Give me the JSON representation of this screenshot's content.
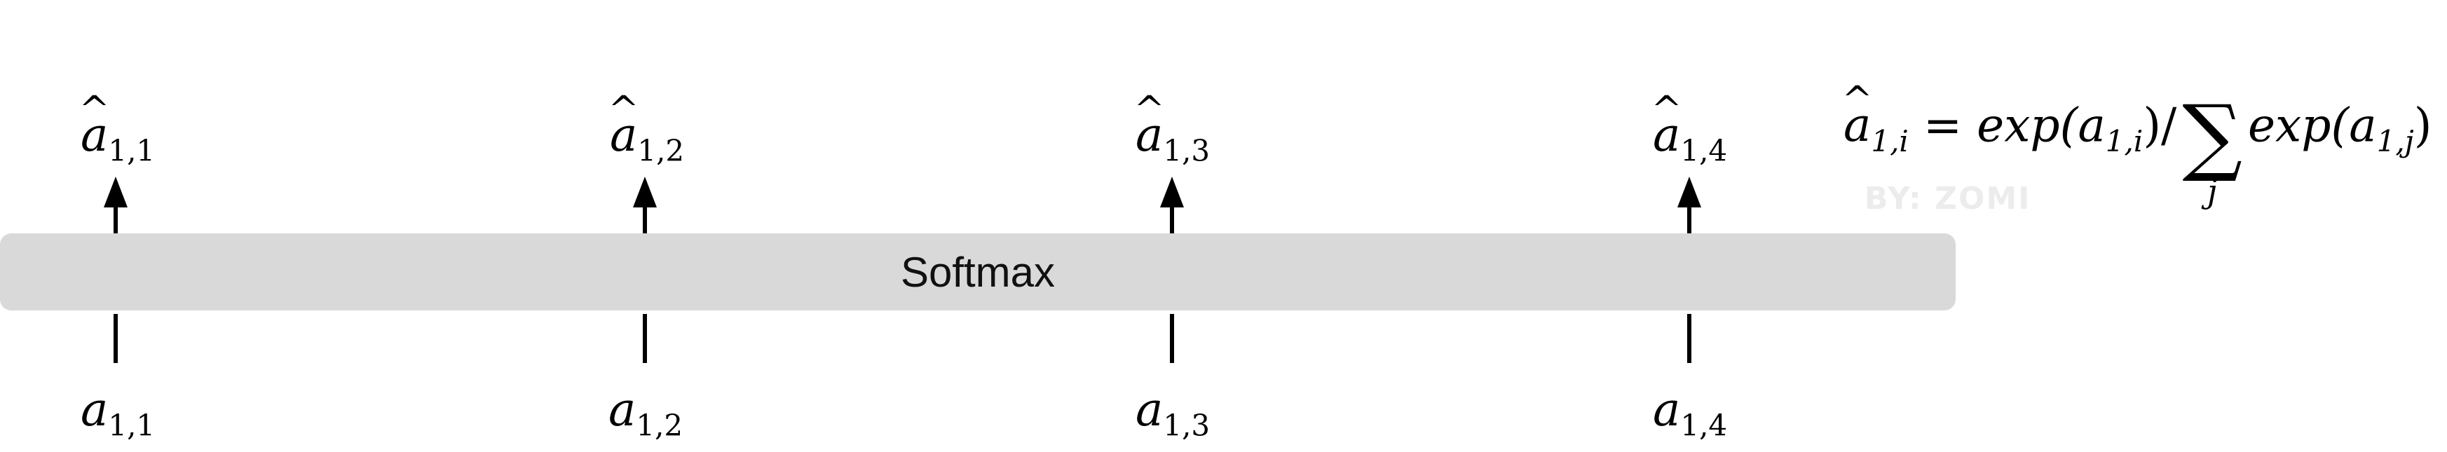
{
  "diagram": {
    "box_label": "Softmax",
    "outputs": [
      {
        "base": "a",
        "sub": "1,1"
      },
      {
        "base": "a",
        "sub": "1,2"
      },
      {
        "base": "a",
        "sub": "1,3"
      },
      {
        "base": "a",
        "sub": "1,4"
      }
    ],
    "inputs": [
      {
        "base": "a",
        "sub": "1,1"
      },
      {
        "base": "a",
        "sub": "1,2"
      },
      {
        "base": "a",
        "sub": "1,3"
      },
      {
        "base": "a",
        "sub": "1,4"
      }
    ],
    "formula": {
      "lhs_base": "a",
      "lhs_sub": "1,i",
      "equals": "=",
      "numerator": "exp(",
      "num_base": "a",
      "num_sub": "1,i",
      "num_close": ")/",
      "sum_symbol": "∑",
      "sum_index": "j",
      "denominator": "exp(",
      "den_base": "a",
      "den_sub": "1,j",
      "den_close": ")"
    },
    "watermark": "BY: ZOMI"
  }
}
